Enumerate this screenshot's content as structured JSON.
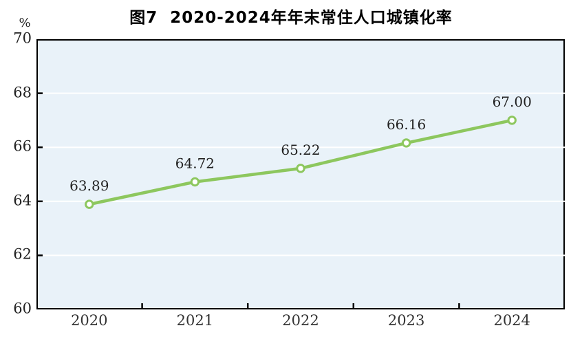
{
  "chart_data": {
    "type": "line",
    "title": "图7  2020-2024年年末常住人口城镇化率",
    "y_unit": "%",
    "categories": [
      "2020",
      "2021",
      "2022",
      "2023",
      "2024"
    ],
    "values": [
      63.89,
      64.72,
      65.22,
      66.16,
      67.0
    ],
    "data_labels": [
      "63.89",
      "64.72",
      "65.22",
      "66.16",
      "67.00"
    ],
    "ylim": [
      60,
      70
    ],
    "y_ticks": [
      60,
      62,
      64,
      66,
      68,
      70
    ],
    "grid": true,
    "legend": "none",
    "colors": {
      "line": "#8dc75e",
      "marker_fill": "#ffffff",
      "plot_background": "#e9f2f9",
      "gridline": "#ffffff",
      "axis": "#000000",
      "label_text": "#222222",
      "page_background": "#ffffff"
    }
  }
}
